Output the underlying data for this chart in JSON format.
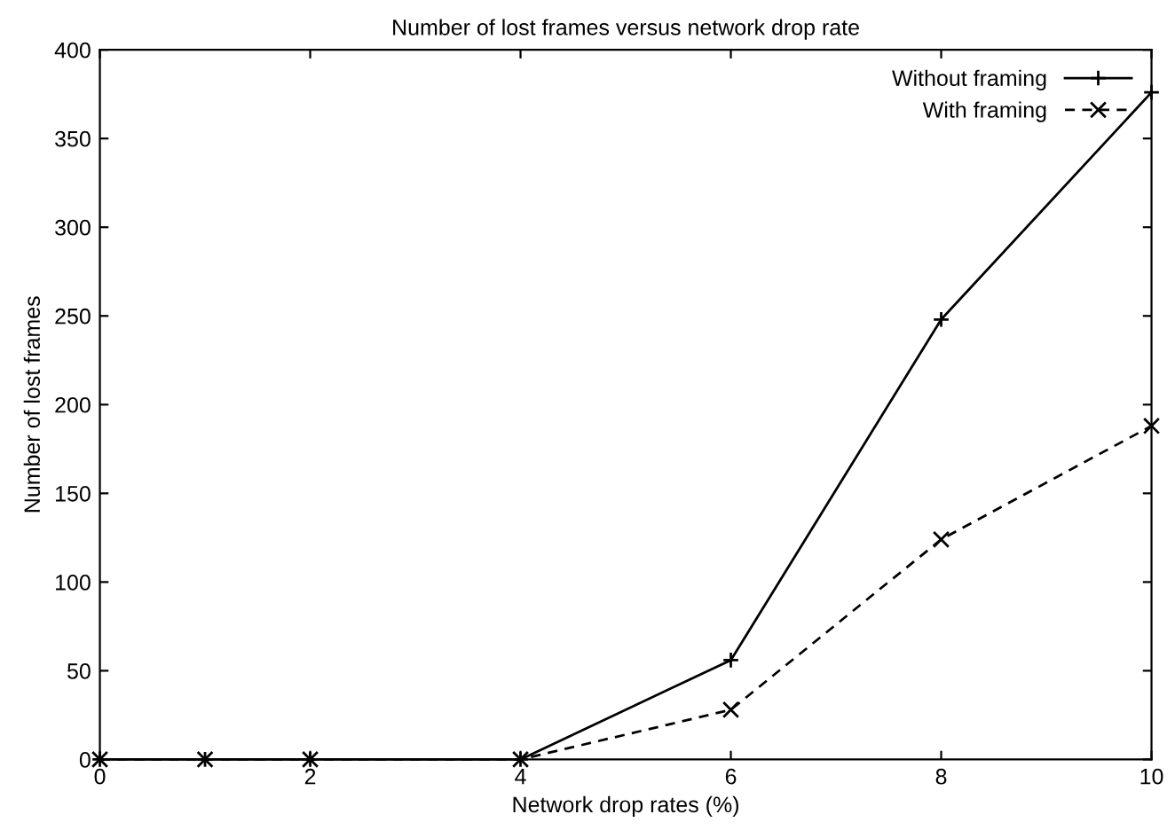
{
  "chart_data": {
    "type": "line",
    "title": "Number of lost frames versus network drop rate",
    "xlabel": "Network drop rates (%)",
    "ylabel": "Number of lost frames",
    "x": [
      0,
      1,
      2,
      4,
      6,
      8,
      10
    ],
    "series": [
      {
        "name": "Without framing",
        "color": "#000000",
        "values": [
          0,
          0,
          0,
          0,
          56,
          248,
          376
        ],
        "marker": "plus",
        "line_style": "solid"
      },
      {
        "name": "With framing",
        "color": "#000000",
        "values": [
          0,
          0,
          0,
          0,
          28,
          124,
          188
        ],
        "marker": "cross",
        "line_style": "dashed"
      }
    ],
    "xlim": [
      0,
      10
    ],
    "xticks": [
      0,
      2,
      4,
      6,
      8,
      10
    ],
    "ylim": [
      0,
      400
    ],
    "yticks": [
      0,
      50,
      100,
      150,
      200,
      250,
      300,
      350,
      400
    ],
    "grid": false,
    "legend": "top right"
  }
}
